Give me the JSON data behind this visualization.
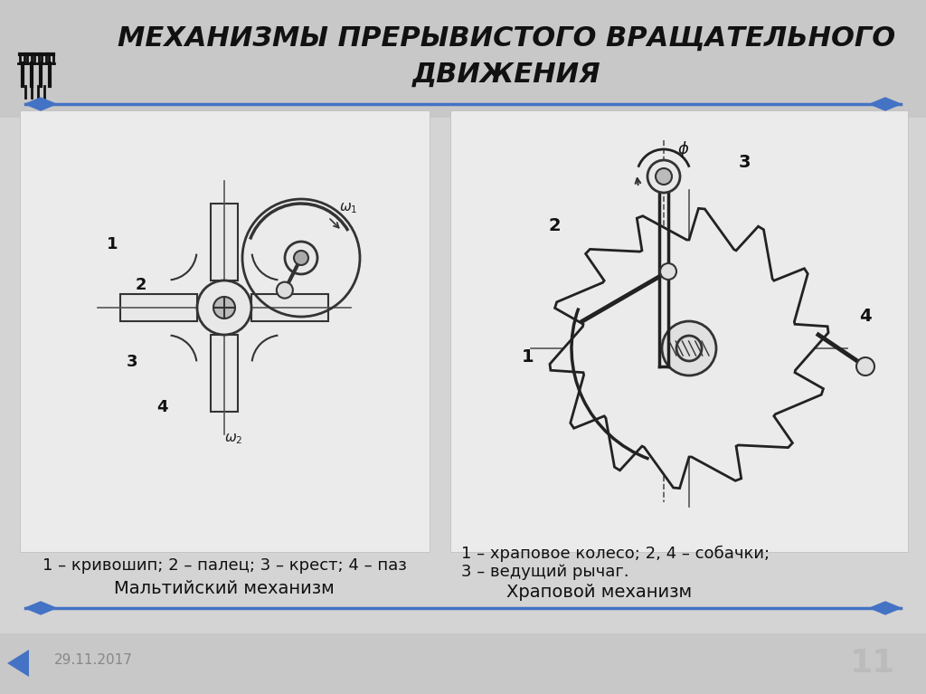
{
  "title_line1": "МЕХАНИЗМЫ ПРЕРЫВИСТОГО ВРАЩАТЕЛЬНОГО",
  "title_line2": "ДВИЖЕНИЯ",
  "bg_color": "#d4d4d4",
  "title_color": "#111111",
  "arrow_color": "#4472c4",
  "left_caption1": "1 – кривошип; 2 – палец; 3 – крест; 4 – паз",
  "left_caption2": "Мальтийский механизм",
  "right_caption1": "1 – храповое колесо; 2, 4 – собачки;",
  "right_caption2": "3 – ведущий рычаг.",
  "right_caption3": "Храповой механизм",
  "date_text": "29.11.2017",
  "page_num": "11"
}
